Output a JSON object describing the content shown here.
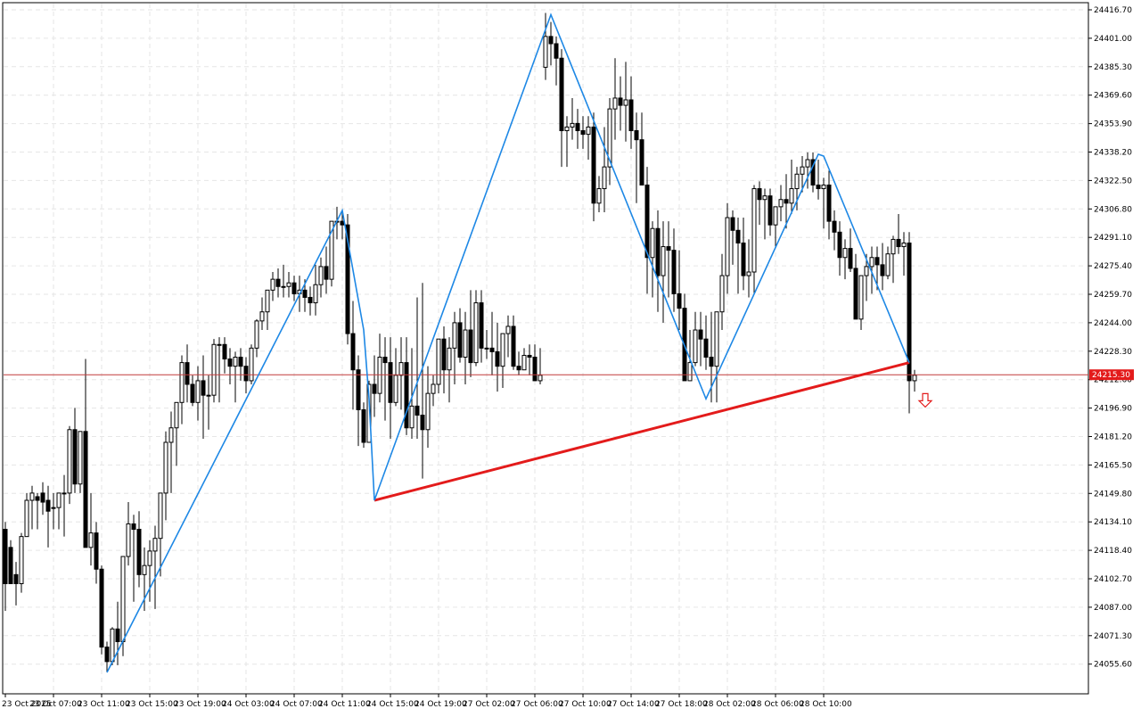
{
  "chart_data": {
    "type": "candlestick",
    "y_ticks": [
      "24416.70",
      "24401.00",
      "24385.30",
      "24369.60",
      "24353.90",
      "24338.20",
      "24322.50",
      "24306.80",
      "24291.10",
      "24275.40",
      "24259.70",
      "24244.00",
      "24228.30",
      "24212.60",
      "24196.90",
      "24181.20",
      "24165.50",
      "24149.80",
      "24134.10",
      "24118.40",
      "24102.70",
      "24087.00",
      "24071.30",
      "24055.60"
    ],
    "x_ticks": [
      "23 Oct 2025",
      "23 Oct 07:00",
      "23 Oct 11:00",
      "23 Oct 15:00",
      "23 Oct 19:00",
      "24 Oct 03:00",
      "24 Oct 07:00",
      "24 Oct 11:00",
      "24 Oct 15:00",
      "24 Oct 19:00",
      "27 Oct 02:00",
      "27 Oct 06:00",
      "27 Oct 10:00",
      "27 Oct 14:00",
      "27 Oct 18:00",
      "28 Oct 02:00",
      "28 Oct 06:00",
      "28 Oct 10:00"
    ],
    "current_price": "24215.30",
    "ylim": [
      24046,
      24426
    ],
    "bars": [
      [
        24130,
        24134,
        24085,
        24100
      ],
      [
        24120,
        24124,
        24100,
        24100
      ],
      [
        24105,
        24112,
        24088,
        24100
      ],
      [
        24100,
        24128,
        24095,
        24126
      ],
      [
        24126,
        24150,
        24126,
        24146
      ],
      [
        24146,
        24154,
        24130,
        24150
      ],
      [
        24148,
        24150,
        24130,
        24146
      ],
      [
        24150,
        24156,
        24138,
        24145
      ],
      [
        24146,
        24154,
        24120,
        24140
      ],
      [
        24142,
        24150,
        24130,
        24142
      ],
      [
        24142,
        24150,
        24130,
        24150
      ],
      [
        24150,
        24160,
        24126,
        24150
      ],
      [
        24150,
        24187,
        24144,
        24185
      ],
      [
        24185,
        24197,
        24150,
        24155
      ],
      [
        24155,
        24184,
        24150,
        24184
      ],
      [
        24184,
        24224,
        24140,
        24120
      ],
      [
        24120,
        24150,
        24110,
        24128
      ],
      [
        24128,
        24134,
        24100,
        24108
      ],
      [
        24108,
        24110,
        24061,
        24065
      ],
      [
        24065,
        24068,
        24051,
        24057
      ],
      [
        24057,
        24076,
        24055,
        24075
      ],
      [
        24075,
        24090,
        24055,
        24068
      ],
      [
        24068,
        24106,
        24060,
        24115
      ],
      [
        24115,
        24145,
        24110,
        24133
      ],
      [
        24133,
        24138,
        24090,
        24130
      ],
      [
        24130,
        24140,
        24098,
        24105
      ],
      [
        24105,
        24120,
        24085,
        24110
      ],
      [
        24110,
        24124,
        24090,
        24118
      ],
      [
        24118,
        24132,
        24086,
        24125
      ],
      [
        24125,
        24150,
        24104,
        24150
      ],
      [
        24150,
        24184,
        24135,
        24178
      ],
      [
        24178,
        24195,
        24150,
        24186
      ],
      [
        24186,
        24200,
        24165,
        24200
      ],
      [
        24200,
        24226,
        24188,
        24222
      ],
      [
        24222,
        24232,
        24200,
        24210
      ],
      [
        24210,
        24215,
        24198,
        24200
      ],
      [
        24200,
        24220,
        24190,
        24212
      ],
      [
        24212,
        24226,
        24180,
        24204
      ],
      [
        24204,
        24215,
        24185,
        24204
      ],
      [
        24204,
        24235,
        24200,
        24232
      ],
      [
        24232,
        24236,
        24200,
        24232
      ],
      [
        24232,
        24236,
        24216,
        24224
      ],
      [
        24224,
        24230,
        24210,
        24220
      ],
      [
        24220,
        24228,
        24200,
        24225
      ],
      [
        24225,
        24230,
        24212,
        24220
      ],
      [
        24220,
        24225,
        24205,
        24212
      ],
      [
        24212,
        24232,
        24210,
        24230
      ],
      [
        24230,
        24246,
        24225,
        24245
      ],
      [
        24245,
        24258,
        24240,
        24250
      ],
      [
        24250,
        24262,
        24240,
        24262
      ],
      [
        24262,
        24272,
        24256,
        24268
      ],
      [
        24268,
        24274,
        24258,
        24264
      ],
      [
        24264,
        24276,
        24258,
        24264
      ],
      [
        24264,
        24272,
        24258,
        24266
      ],
      [
        24266,
        24270,
        24256,
        24260
      ],
      [
        24260,
        24270,
        24250,
        24262
      ],
      [
        24262,
        24268,
        24250,
        24258
      ],
      [
        24258,
        24264,
        24248,
        24255
      ],
      [
        24255,
        24276,
        24248,
        24265
      ],
      [
        24265,
        24280,
        24258,
        24275
      ],
      [
        24275,
        24286,
        24260,
        24268
      ],
      [
        24268,
        24298,
        24264,
        24300
      ],
      [
        24300,
        24308,
        24290,
        24300
      ],
      [
        24300,
        24306,
        24290,
        24298
      ],
      [
        24298,
        24304,
        24232,
        24238
      ],
      [
        24238,
        24256,
        24196,
        24218
      ],
      [
        24218,
        24226,
        24176,
        24196
      ],
      [
        24196,
        24200,
        24175,
        24178
      ],
      [
        24178,
        24212,
        24180,
        24210
      ],
      [
        24210,
        24226,
        24192,
        24205
      ],
      [
        24205,
        24238,
        24200,
        24225
      ],
      [
        24225,
        24236,
        24190,
        24222
      ],
      [
        24222,
        24236,
        24180,
        24200
      ],
      [
        24200,
        24230,
        24198,
        24215
      ],
      [
        24215,
        24236,
        24196,
        24222
      ],
      [
        24222,
        24236,
        24182,
        24186
      ],
      [
        24186,
        24230,
        24180,
        24198
      ],
      [
        24198,
        24258,
        24180,
        24193
      ],
      [
        24193,
        24266,
        24158,
        24185
      ],
      [
        24185,
        24220,
        24175,
        24205
      ],
      [
        24205,
        24215,
        24198,
        24210
      ],
      [
        24210,
        24235,
        24205,
        24235
      ],
      [
        24235,
        24242,
        24205,
        24218
      ],
      [
        24218,
        24236,
        24200,
        24230
      ],
      [
        24230,
        24250,
        24210,
        24244
      ],
      [
        24244,
        24252,
        24222,
        24225
      ],
      [
        24225,
        24250,
        24210,
        24240
      ],
      [
        24240,
        24262,
        24214,
        24222
      ],
      [
        24222,
        24262,
        24220,
        24255
      ],
      [
        24255,
        24262,
        24222,
        24230
      ],
      [
        24230,
        24240,
        24224,
        24230
      ],
      [
        24230,
        24250,
        24215,
        24228
      ],
      [
        24228,
        24244,
        24206,
        24220
      ],
      [
        24220,
        24232,
        24208,
        24238
      ],
      [
        24238,
        24248,
        24225,
        24242
      ],
      [
        24242,
        24248,
        24218,
        24220
      ],
      [
        24220,
        24228,
        24215,
        24218
      ],
      [
        24218,
        24230,
        24220,
        24226
      ],
      [
        24226,
        24232,
        24215,
        24225
      ],
      [
        24225,
        24232,
        24215,
        24212
      ],
      [
        24212,
        24230,
        24210,
        24215
      ],
      [
        24385,
        24415,
        24378,
        24402
      ],
      [
        24402,
        24410,
        24386,
        24398
      ],
      [
        24398,
        24402,
        24375,
        24390
      ],
      [
        24390,
        24395,
        24330,
        24350
      ],
      [
        24350,
        24358,
        24330,
        24352
      ],
      [
        24352,
        24368,
        24345,
        24354
      ],
      [
        24354,
        24362,
        24340,
        24350
      ],
      [
        24350,
        24358,
        24340,
        24348
      ],
      [
        24348,
        24358,
        24334,
        24352
      ],
      [
        24352,
        24360,
        24300,
        24310
      ],
      [
        24310,
        24325,
        24305,
        24318
      ],
      [
        24318,
        24352,
        24305,
        24330
      ],
      [
        24330,
        24368,
        24320,
        24362
      ],
      [
        24362,
        24390,
        24345,
        24368
      ],
      [
        24368,
        24380,
        24350,
        24364
      ],
      [
        24364,
        24388,
        24344,
        24367
      ],
      [
        24367,
        24380,
        24340,
        24350
      ],
      [
        24350,
        24360,
        24310,
        24345
      ],
      [
        24345,
        24360,
        24322,
        24320
      ],
      [
        24320,
        24330,
        24260,
        24280
      ],
      [
        24280,
        24300,
        24258,
        24296
      ],
      [
        24296,
        24306,
        24250,
        24270
      ],
      [
        24270,
        24300,
        24244,
        24286
      ],
      [
        24286,
        24300,
        24258,
        24284
      ],
      [
        24284,
        24296,
        24250,
        24260
      ],
      [
        24260,
        24284,
        24240,
        24252
      ],
      [
        24252,
        24260,
        24214,
        24212
      ],
      [
        24212,
        24240,
        24212,
        24222
      ],
      [
        24222,
        24250,
        24220,
        24240
      ],
      [
        24240,
        24250,
        24220,
        24235
      ],
      [
        24235,
        24248,
        24218,
        24225
      ],
      [
        24225,
        24250,
        24200,
        24220
      ],
      [
        24220,
        24240,
        24200,
        24250
      ],
      [
        24250,
        24282,
        24240,
        24270
      ],
      [
        24270,
        24310,
        24260,
        24302
      ],
      [
        24302,
        24306,
        24276,
        24295
      ],
      [
        24295,
        24302,
        24260,
        24288
      ],
      [
        24288,
        24302,
        24262,
        24270
      ],
      [
        24270,
        24290,
        24258,
        24272
      ],
      [
        24272,
        24320,
        24260,
        24318
      ],
      [
        24318,
        24322,
        24298,
        24312
      ],
      [
        24312,
        24318,
        24290,
        24314
      ],
      [
        24314,
        24318,
        24292,
        24298
      ],
      [
        24298,
        24304,
        24286,
        24308
      ],
      [
        24308,
        24320,
        24300,
        24312
      ],
      [
        24312,
        24326,
        24296,
        24310
      ],
      [
        24310,
        24334,
        24304,
        24318
      ],
      [
        24318,
        24330,
        24306,
        24326
      ],
      [
        24326,
        24336,
        24316,
        24330
      ],
      [
        24330,
        24338,
        24318,
        24334
      ],
      [
        24334,
        24338,
        24316,
        24320
      ],
      [
        24320,
        24334,
        24312,
        24318
      ],
      [
        24318,
        24324,
        24296,
        24320
      ],
      [
        24320,
        24328,
        24290,
        24300
      ],
      [
        24300,
        24306,
        24284,
        24294
      ],
      [
        24294,
        24300,
        24270,
        24280
      ],
      [
        24280,
        24290,
        24268,
        24285
      ],
      [
        24285,
        24296,
        24272,
        24274
      ],
      [
        24274,
        24282,
        24250,
        24246
      ],
      [
        24246,
        24260,
        24240,
        24270
      ],
      [
        24270,
        24282,
        24256,
        24275
      ],
      [
        24275,
        24286,
        24260,
        24280
      ],
      [
        24280,
        24286,
        24262,
        24276
      ],
      [
        24276,
        24288,
        24262,
        24270
      ],
      [
        24270,
        24286,
        24268,
        24282
      ],
      [
        24282,
        24292,
        24266,
        24290
      ],
      [
        24290,
        24304,
        24282,
        24286
      ],
      [
        24286,
        24294,
        24270,
        24288
      ],
      [
        24288,
        24294,
        24194,
        24212
      ],
      [
        24212,
        24218,
        24206,
        24215
      ]
    ],
    "zigzag": [
      [
        19,
        24051
      ],
      [
        63,
        24306
      ],
      [
        67,
        24240
      ],
      [
        68,
        24202
      ],
      [
        69,
        24146
      ],
      [
        102,
        24414
      ],
      [
        131,
        24202
      ],
      [
        152,
        24337
      ],
      [
        153,
        24336
      ],
      [
        169,
        24222
      ]
    ],
    "trend_line": [
      [
        69,
        24146
      ],
      [
        169,
        24222
      ]
    ],
    "x_tick_bars": [
      0,
      9,
      18,
      27,
      36,
      45,
      54,
      63,
      72,
      81,
      90,
      99,
      108,
      117,
      126,
      135,
      144,
      153
    ],
    "arrow_bar": 172,
    "arrow_price": 24198,
    "colors": {
      "bull_fill": "#ffffff",
      "bear_fill": "#000000",
      "candle_stroke": "#000000",
      "zigzag": "#1e88e5",
      "trend": "#e31b1b",
      "price_line": "#c23b3b",
      "price_label_bg": "#e31b1b",
      "grid": "#e6e6e6"
    }
  }
}
